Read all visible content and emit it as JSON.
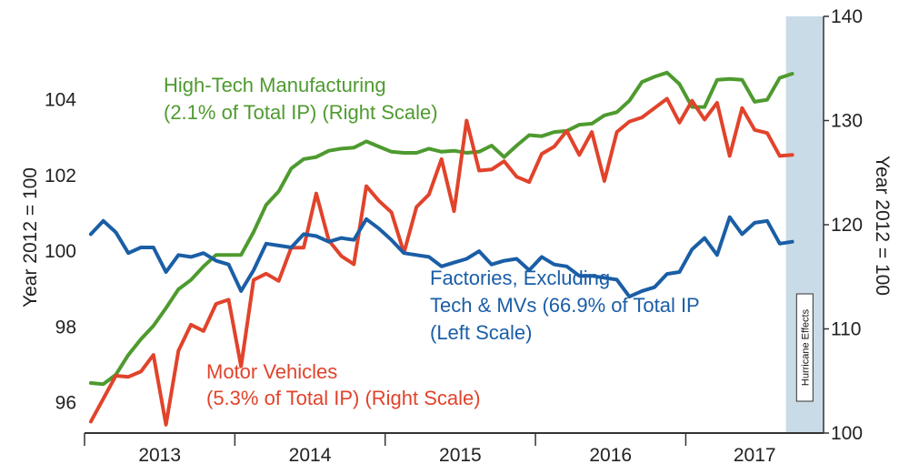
{
  "chart_data": {
    "type": "line",
    "title": "",
    "x_start": "2013-01",
    "months": 59,
    "x_ticks": [
      "2013",
      "2014",
      "2015",
      "2016",
      "2017"
    ],
    "left_axis": {
      "label": "Year 2012 = 100",
      "range": [
        95.2,
        106.2
      ],
      "ticks": [
        96,
        98,
        100,
        102,
        104
      ]
    },
    "right_axis": {
      "label": "Year 2012 = 100",
      "range": [
        100,
        140
      ],
      "ticks": [
        100,
        110,
        120,
        130,
        140
      ]
    },
    "series": [
      {
        "name": "High-Tech Manufacturing",
        "axis": "right",
        "color": "#4e9a2f",
        "values": [
          104.8,
          104.7,
          105.6,
          107.5,
          109,
          110.3,
          112,
          113.8,
          114.7,
          116,
          117.1,
          117.1,
          117.1,
          119.3,
          121.9,
          123.2,
          125.4,
          126.3,
          126.5,
          127.1,
          127.3,
          127.4,
          128,
          127.5,
          127,
          126.9,
          126.9,
          127.3,
          127,
          127.1,
          126.9,
          127,
          127.6,
          126.5,
          127.6,
          128.6,
          128.5,
          128.9,
          129,
          129.6,
          129.7,
          130.5,
          130.8,
          131.9,
          133.7,
          134.2,
          134.6,
          133.5,
          131.3,
          131.3,
          133.9,
          134,
          133.9,
          131.8,
          132,
          134.1,
          134.5
        ]
      },
      {
        "name": "Motor Vehicles",
        "axis": "right",
        "color": "#e1432b",
        "values": [
          101.1,
          103.3,
          105.5,
          105.4,
          105.9,
          107.5,
          100.8,
          107.9,
          110.4,
          109.8,
          112.4,
          112.8,
          106.4,
          114.7,
          115.3,
          114.6,
          117.8,
          117.8,
          123,
          118.5,
          117,
          116.2,
          123.7,
          122.3,
          121.2,
          117.3,
          121.7,
          122.9,
          126.3,
          121.3,
          130,
          125.2,
          125.3,
          126.1,
          124.6,
          124.1,
          126.8,
          127.5,
          129,
          126.7,
          128.9,
          124.2,
          128.9,
          129.9,
          130.3,
          131.2,
          132.1,
          129.8,
          131.9,
          130.1,
          131.7,
          126.6,
          131.2,
          129.1,
          128.8,
          126.6,
          126.7
        ]
      },
      {
        "name": "Factories, Excluding Tech & MVs",
        "axis": "left",
        "color": "#1a5ea6",
        "values": [
          100.45,
          100.8,
          100.5,
          99.95,
          100.1,
          100.1,
          99.45,
          99.9,
          99.85,
          99.95,
          99.75,
          99.65,
          98.95,
          99.5,
          100.2,
          100.15,
          100.1,
          100.45,
          100.4,
          100.25,
          100.35,
          100.3,
          100.85,
          100.6,
          100.3,
          99.95,
          99.9,
          99.85,
          99.6,
          99.7,
          99.8,
          100,
          99.65,
          99.75,
          99.8,
          99.5,
          99.85,
          99.65,
          99.6,
          99.35,
          99.35,
          99.3,
          99.25,
          98.8,
          98.95,
          99.05,
          99.4,
          99.45,
          100.05,
          100.35,
          99.9,
          100.9,
          100.45,
          100.75,
          100.8,
          100.2,
          100.25
        ]
      }
    ],
    "shaded_region": {
      "start_month": 56,
      "end_month": 59,
      "label": "Hurricane Effects"
    },
    "annotations": {
      "high_tech": [
        "High-Tech Manufacturing",
        "(2.1% of Total IP) (Right Scale)"
      ],
      "motor": [
        "Motor Vehicles",
        "(5.3% of Total IP) (Right Scale)"
      ],
      "factories": [
        "Factories, Excluding",
        "Tech & MVs (66.9% of Total IP",
        "(Left Scale)"
      ]
    }
  }
}
